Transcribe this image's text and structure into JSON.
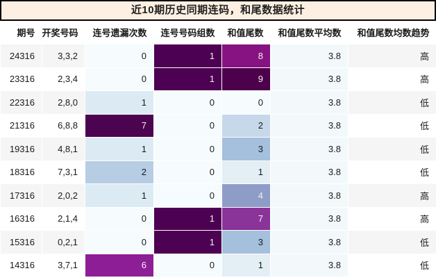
{
  "title": "近10期历史同期连码，和尾数据统计",
  "columns": [
    "期号",
    "开奖号码",
    "连号遗漏次数",
    "连号号码组数",
    "和值尾数",
    "和值尾数平均数",
    "和值尾数均数趋势"
  ],
  "colors": {
    "title_bg": "#fdf0e2",
    "title_border": "#000000",
    "stripe_odd": "#f5f5f5",
    "stripe_even": "#ffffff",
    "dark_text": "#1a1a1a",
    "light_text": "#f1f1f1",
    "heatmap_low": "#f6fbfd",
    "heatmap_high": "#4d004b"
  },
  "rows": [
    {
      "period": "24316",
      "numbers": "3,3,2",
      "miss": {
        "v": "0",
        "bg": "#f6fbfd",
        "fg": "d"
      },
      "groups": {
        "v": "1",
        "bg": "#4d0152",
        "fg": "l"
      },
      "tail": {
        "v": "8",
        "bg": "#861381",
        "fg": "l"
      },
      "avg": {
        "v": "3.8",
        "bg": "#f3f9fb",
        "fg": "d"
      },
      "trend": "高"
    },
    {
      "period": "23316",
      "numbers": "2,3,4",
      "miss": {
        "v": "0",
        "bg": "#f6fbfd",
        "fg": "d"
      },
      "groups": {
        "v": "1",
        "bg": "#4d0152",
        "fg": "l"
      },
      "tail": {
        "v": "9",
        "bg": "#4d004b",
        "fg": "l"
      },
      "avg": {
        "v": "3.8",
        "bg": "#f3f9fb",
        "fg": "d"
      },
      "trend": "高"
    },
    {
      "period": "22316",
      "numbers": "2,8,0",
      "miss": {
        "v": "1",
        "bg": "#dcebf3",
        "fg": "d"
      },
      "groups": {
        "v": "0",
        "bg": "#f6fbfd",
        "fg": "d"
      },
      "tail": {
        "v": "0",
        "bg": "#f6fbfd",
        "fg": "d"
      },
      "avg": {
        "v": "3.8",
        "bg": "#f3f9fb",
        "fg": "d"
      },
      "trend": "低"
    },
    {
      "period": "21316",
      "numbers": "6,8,8",
      "miss": {
        "v": "7",
        "bg": "#4c0350",
        "fg": "l"
      },
      "groups": {
        "v": "0",
        "bg": "#f6fbfd",
        "fg": "d"
      },
      "tail": {
        "v": "2",
        "bg": "#c6d8ea",
        "fg": "d"
      },
      "avg": {
        "v": "3.8",
        "bg": "#f3f9fb",
        "fg": "d"
      },
      "trend": "低"
    },
    {
      "period": "19316",
      "numbers": "4,8,1",
      "miss": {
        "v": "1",
        "bg": "#dcebf3",
        "fg": "d"
      },
      "groups": {
        "v": "0",
        "bg": "#f6fbfd",
        "fg": "d"
      },
      "tail": {
        "v": "3",
        "bg": "#a5c0dd",
        "fg": "d"
      },
      "avg": {
        "v": "3.8",
        "bg": "#f3f9fb",
        "fg": "d"
      },
      "trend": "低"
    },
    {
      "period": "18316",
      "numbers": "7,3,1",
      "miss": {
        "v": "2",
        "bg": "#b6cde3",
        "fg": "d"
      },
      "groups": {
        "v": "0",
        "bg": "#f6fbfd",
        "fg": "d"
      },
      "tail": {
        "v": "1",
        "bg": "#e3eef5",
        "fg": "d"
      },
      "avg": {
        "v": "3.8",
        "bg": "#f3f9fb",
        "fg": "d"
      },
      "trend": "低"
    },
    {
      "period": "17316",
      "numbers": "2,0,2",
      "miss": {
        "v": "1",
        "bg": "#dcebf3",
        "fg": "d"
      },
      "groups": {
        "v": "0",
        "bg": "#f6fbfd",
        "fg": "d"
      },
      "tail": {
        "v": "4",
        "bg": "#8e9cc8",
        "fg": "l"
      },
      "avg": {
        "v": "3.8",
        "bg": "#f3f9fb",
        "fg": "d"
      },
      "trend": "高"
    },
    {
      "period": "16316",
      "numbers": "2,1,4",
      "miss": {
        "v": "0",
        "bg": "#f6fbfd",
        "fg": "d"
      },
      "groups": {
        "v": "1",
        "bg": "#4d0152",
        "fg": "l"
      },
      "tail": {
        "v": "7",
        "bg": "#8a3399",
        "fg": "l"
      },
      "avg": {
        "v": "3.8",
        "bg": "#f3f9fb",
        "fg": "d"
      },
      "trend": "高"
    },
    {
      "period": "15316",
      "numbers": "0,2,1",
      "miss": {
        "v": "0",
        "bg": "#f6fbfd",
        "fg": "d"
      },
      "groups": {
        "v": "1",
        "bg": "#4d0152",
        "fg": "l"
      },
      "tail": {
        "v": "3",
        "bg": "#a5c0dd",
        "fg": "d"
      },
      "avg": {
        "v": "3.8",
        "bg": "#f3f9fb",
        "fg": "d"
      },
      "trend": "低"
    },
    {
      "period": "14316",
      "numbers": "3,7,1",
      "miss": {
        "v": "6",
        "bg": "#8e1e96",
        "fg": "l"
      },
      "groups": {
        "v": "0",
        "bg": "#f6fbfd",
        "fg": "d"
      },
      "tail": {
        "v": "1",
        "bg": "#e3eef5",
        "fg": "d"
      },
      "avg": {
        "v": "3.8",
        "bg": "#f3f9fb",
        "fg": "d"
      },
      "trend": "低"
    }
  ]
}
